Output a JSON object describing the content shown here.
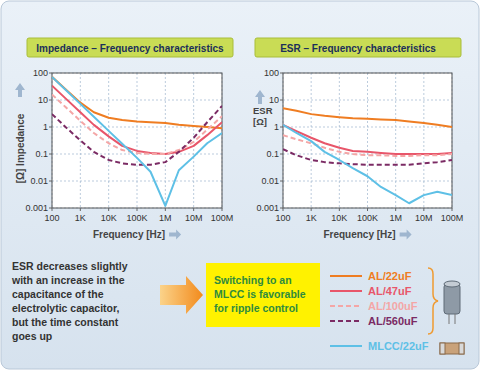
{
  "chart_data": [
    {
      "type": "line",
      "title": "Impedance – Frequency characteristics",
      "xlabel": "Frequency [Hz]",
      "ylabel": "[Ω] Impedance",
      "log": true,
      "grid": true,
      "xlim": [
        100,
        100000000
      ],
      "ylim": [
        0.001,
        100
      ],
      "xticks": [
        100,
        {
          "value": 1000,
          "label": "1K"
        },
        {
          "value": 10000,
          "label": "10K"
        },
        {
          "value": 100000,
          "label": "100K"
        },
        {
          "value": 1000000,
          "label": "1M"
        },
        {
          "value": 10000000,
          "label": "10M"
        },
        {
          "value": 100000000,
          "label": "100M"
        }
      ],
      "yticks": [
        0.001,
        0.01,
        0.1,
        1,
        10,
        100
      ],
      "x": [
        100,
        300,
        1000,
        3000,
        10000,
        30000,
        100000,
        300000,
        1000000,
        3000000,
        10000000,
        30000000,
        100000000
      ],
      "series": [
        {
          "color": "#ef7d22",
          "line_style": "solid",
          "values": [
            72,
            25,
            8,
            3.5,
            2.2,
            1.8,
            1.6,
            1.5,
            1.4,
            1.2,
            1.1,
            1.0,
            0.9
          ]
        },
        {
          "color": "#e8566a",
          "line_style": "solid",
          "values": [
            34,
            11.5,
            3.5,
            1.2,
            0.45,
            0.2,
            0.13,
            0.11,
            0.1,
            0.12,
            0.2,
            0.5,
            1.5
          ]
        },
        {
          "color": "#f4a6a6",
          "line_style": "dashed",
          "values": [
            16,
            5.5,
            1.7,
            0.6,
            0.25,
            0.14,
            0.11,
            0.1,
            0.1,
            0.14,
            0.28,
            0.8,
            2.5
          ]
        },
        {
          "color": "#7b2b64",
          "line_style": "dashed",
          "values": [
            3,
            1,
            0.32,
            0.12,
            0.06,
            0.045,
            0.04,
            0.04,
            0.05,
            0.12,
            0.4,
            1.5,
            6
          ]
        },
        {
          "color": "#5ec0e6",
          "line_style": "solid",
          "values": [
            72,
            24,
            7.2,
            2.4,
            0.72,
            0.24,
            0.072,
            0.022,
            0.0012,
            0.025,
            0.08,
            0.25,
            0.6
          ]
        }
      ]
    },
    {
      "type": "line",
      "title": "ESR – Frequency characteristics",
      "xlabel": "Frequency [Hz]",
      "ylabel": "ESR [Ω]",
      "log": true,
      "grid": true,
      "xlim": [
        100,
        100000000
      ],
      "ylim": [
        0.001,
        100
      ],
      "xticks": [
        100,
        {
          "value": 1000,
          "label": "1K"
        },
        {
          "value": 10000,
          "label": "10K"
        },
        {
          "value": 100000,
          "label": "100K"
        },
        {
          "value": 1000000,
          "label": "1M"
        },
        {
          "value": 10000000,
          "label": "10M"
        },
        {
          "value": 100000000,
          "label": "100M"
        }
      ],
      "yticks": [
        0.001,
        0.01,
        0.1,
        1,
        10,
        100
      ],
      "x": [
        100,
        300,
        1000,
        3000,
        10000,
        30000,
        100000,
        300000,
        1000000,
        3000000,
        10000000,
        30000000,
        100000000
      ],
      "series": [
        {
          "name": "AL/22uF",
          "color": "#ef7d22",
          "line_style": "solid",
          "values": [
            5,
            4,
            3,
            2.6,
            2.3,
            2.1,
            2.0,
            1.9,
            1.8,
            1.6,
            1.4,
            1.2,
            1.0
          ]
        },
        {
          "name": "AL/47uF",
          "color": "#e8566a",
          "line_style": "solid",
          "values": [
            1.2,
            0.7,
            0.4,
            0.25,
            0.17,
            0.13,
            0.12,
            0.11,
            0.1,
            0.1,
            0.1,
            0.1,
            0.11
          ]
        },
        {
          "name": "AL/100uF",
          "color": "#f4a6a6",
          "line_style": "dashed",
          "values": [
            0.5,
            0.35,
            0.25,
            0.17,
            0.12,
            0.1,
            0.09,
            0.09,
            0.085,
            0.085,
            0.09,
            0.09,
            0.1
          ]
        },
        {
          "name": "AL/560uF",
          "color": "#7b2b64",
          "line_style": "dashed",
          "values": [
            0.15,
            0.09,
            0.06,
            0.05,
            0.045,
            0.042,
            0.04,
            0.04,
            0.04,
            0.04,
            0.045,
            0.05,
            0.06
          ]
        },
        {
          "name": "MLCC/22uF",
          "color": "#5ec0e6",
          "line_style": "solid",
          "values": [
            1.2,
            0.6,
            0.3,
            0.12,
            0.06,
            0.03,
            0.015,
            0.006,
            0.003,
            0.0015,
            0.003,
            0.004,
            0.003
          ]
        }
      ]
    }
  ],
  "annotations": [
    "ESR decreases slightly\nwith an increase in the\ncapacitance of the\nelectrolytic capacitor,\nbut the time constant\ngoes up",
    "Switching to an\nMLCC is favorable\nfor ripple control"
  ]
}
